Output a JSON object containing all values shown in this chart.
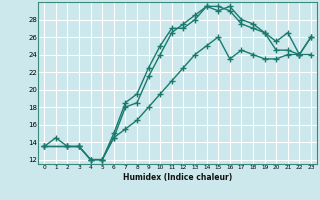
{
  "bg_color": "#cce8ed",
  "grid_color": "#ffffff",
  "line_color": "#1a7a6e",
  "xlim": [
    -0.5,
    23.5
  ],
  "ylim": [
    11.5,
    30.0
  ],
  "xticks": [
    0,
    1,
    2,
    3,
    4,
    5,
    6,
    7,
    8,
    9,
    10,
    11,
    12,
    13,
    14,
    15,
    16,
    17,
    18,
    19,
    20,
    21,
    22,
    23
  ],
  "yticks": [
    12,
    14,
    16,
    18,
    20,
    22,
    24,
    26,
    28
  ],
  "xlabel": "Humidex (Indice chaleur)",
  "series1_x": [
    0,
    1,
    2,
    3,
    4,
    5,
    6,
    7,
    8,
    9,
    10,
    11,
    12,
    13,
    14,
    15,
    16,
    17,
    18,
    19,
    20,
    21,
    22,
    23
  ],
  "series1_y": [
    13.5,
    14.5,
    13.5,
    13.5,
    12.0,
    12.0,
    15.0,
    18.5,
    19.5,
    22.5,
    25.0,
    27.0,
    27.0,
    28.0,
    29.5,
    29.0,
    29.5,
    28.0,
    27.5,
    26.5,
    25.5,
    26.5,
    24.0,
    24.0
  ],
  "series2_x": [
    0,
    2,
    3,
    4,
    5,
    6,
    7,
    8,
    9,
    10,
    11,
    12,
    13,
    14,
    15,
    16,
    17,
    18,
    19,
    20,
    21,
    22,
    23
  ],
  "series2_y": [
    13.5,
    13.5,
    13.5,
    12.0,
    12.0,
    14.5,
    18.0,
    18.5,
    21.5,
    24.0,
    26.5,
    27.5,
    28.5,
    29.5,
    29.5,
    29.0,
    27.5,
    27.0,
    26.5,
    24.5,
    24.5,
    24.0,
    26.0
  ],
  "series3_x": [
    0,
    2,
    3,
    4,
    5,
    6,
    7,
    8,
    9,
    10,
    11,
    12,
    13,
    14,
    15,
    16,
    17,
    18,
    19,
    20,
    21,
    22,
    23
  ],
  "series3_y": [
    13.5,
    13.5,
    13.5,
    12.0,
    12.0,
    14.5,
    15.5,
    16.5,
    18.0,
    19.5,
    21.0,
    22.5,
    24.0,
    25.0,
    26.0,
    23.5,
    24.5,
    24.0,
    23.5,
    23.5,
    24.0,
    24.0,
    26.0
  ]
}
